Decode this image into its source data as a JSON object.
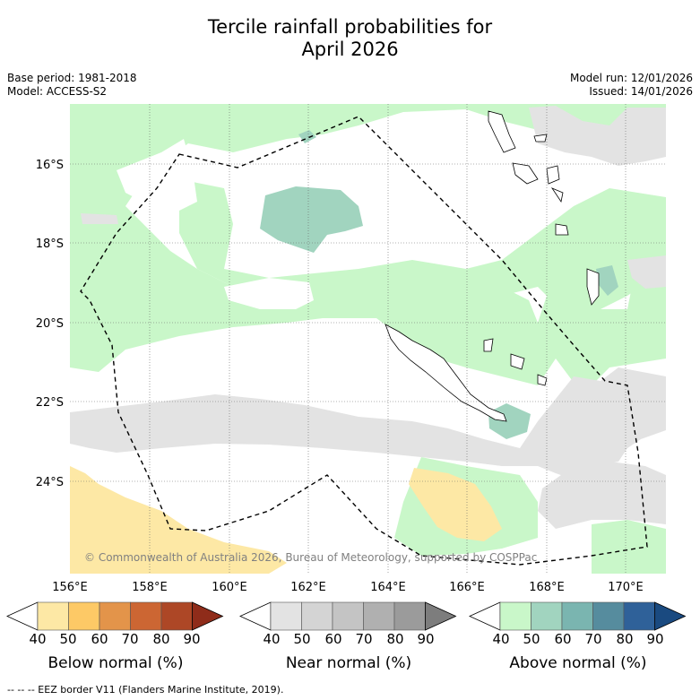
{
  "title": {
    "line1": "Tercile rainfall probabilities for",
    "line2": "April 2026"
  },
  "meta": {
    "base_period": "Base period: 1981-2018",
    "model": "Model: ACCESS-S2",
    "model_run": "Model run: 12/01/2026",
    "issued": "Issued: 14/01/2026"
  },
  "map": {
    "lat_labels": [
      "16°S",
      "18°S",
      "20°S",
      "22°S",
      "24°S"
    ],
    "lon_labels": [
      "156°E",
      "158°E",
      "160°E",
      "162°E",
      "164°E",
      "166°E",
      "168°E",
      "170°E"
    ],
    "copyright": "© Commonwealth of Australia 2026, Bureau of Meteorology, supported by COSPPac",
    "colors": {
      "above_50": "#c9f7c9",
      "above_60": "#a1d4bf",
      "near_40": "#e3e3e3",
      "below_40": "#fde8a5",
      "eez_line": "#000000"
    }
  },
  "colorbars": [
    {
      "name": "below-normal",
      "label": "Below normal (%)",
      "ticks": [
        "40",
        "50",
        "60",
        "70",
        "80",
        "90"
      ],
      "colors": [
        "#ffffff",
        "#fde8a5",
        "#fdc966",
        "#e3944a",
        "#cc6633",
        "#ad4726",
        "#8f2c1a"
      ]
    },
    {
      "name": "near-normal",
      "label": "Near normal (%)",
      "ticks": [
        "40",
        "50",
        "60",
        "70",
        "80",
        "90"
      ],
      "colors": [
        "#ffffff",
        "#e3e3e3",
        "#d4d4d4",
        "#c4c4c4",
        "#b0b0b0",
        "#9b9b9b",
        "#7d7d7d"
      ]
    },
    {
      "name": "above-normal",
      "label": "Above normal (%)",
      "ticks": [
        "40",
        "50",
        "60",
        "70",
        "80",
        "90"
      ],
      "colors": [
        "#ffffff",
        "#c9f7c9",
        "#a1d4bf",
        "#7ab5b0",
        "#568c9e",
        "#2f6199",
        "#1a4a80"
      ]
    }
  ],
  "footer": "--  --  -- EEZ border V11 (Flanders Marine Institute, 2019)."
}
